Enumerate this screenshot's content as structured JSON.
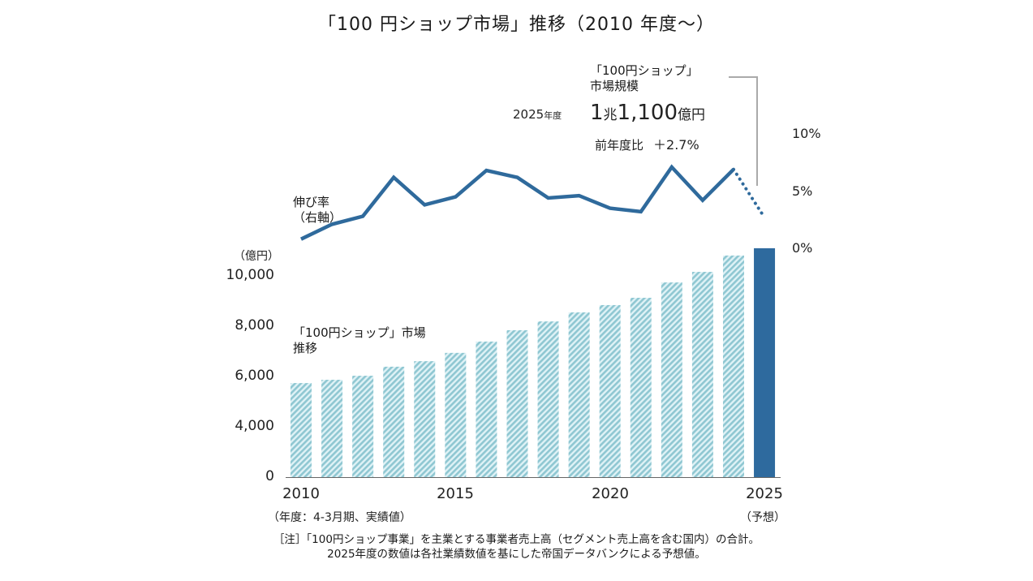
{
  "title": "「100 円ショップ市場」推移（2010 年度～）",
  "callout": {
    "heading_line1": "「100円ショップ」",
    "heading_line2": "市場規模",
    "year": "2025",
    "year_suffix": "年度",
    "value_main": "1",
    "value_unit1": "兆",
    "value_rest": "1,100",
    "value_unit2": "億円",
    "yoy_label": "前年度比",
    "yoy_value": "＋2.7%"
  },
  "labels": {
    "growth_line1": "伸び率",
    "growth_line2": "（右軸）",
    "market_line1": "「100円ショップ」市場",
    "market_line2": "推移",
    "left_unit": "（億円）",
    "fiscal_note": "（年度：4-3月期、実績値）",
    "forecast_note": "（予想）"
  },
  "note": {
    "line1": "［注］「100円ショップ事業」を主業とする事業者売上高（セグメント売上高を含む国内）の合計。",
    "line2": "2025年度の数値は各社業績数値を基にした帝国データバンクによる予想値。"
  },
  "colors": {
    "line": "#2f6a9c",
    "bar_hatch_dark": "#8fc7d2",
    "bar_hatch_light": "#dff2f6",
    "bar_forecast": "#2e6a9e",
    "axis": "#666666",
    "leader": "#aaaaaa"
  },
  "chart_data": {
    "type": "bar+line",
    "title": "「100 円ショップ市場」推移（2010 年度～）",
    "categories": [
      "2010",
      "2011",
      "2012",
      "2013",
      "2014",
      "2015",
      "2016",
      "2017",
      "2018",
      "2019",
      "2020",
      "2021",
      "2022",
      "2023",
      "2024",
      "2025"
    ],
    "x_tick_labels": [
      "2010",
      "2015",
      "2020",
      "2025"
    ],
    "series": [
      {
        "name": "「100円ショップ」市場推移",
        "type": "bar",
        "axis": "left",
        "unit": "億円",
        "values": [
          5740,
          5870,
          6030,
          6390,
          6610,
          6940,
          7390,
          7840,
          8190,
          8550,
          8840,
          9130,
          9740,
          10160,
          10810,
          11100
        ],
        "forecast_from": "2025"
      },
      {
        "name": "伸び率（右軸）",
        "type": "line",
        "axis": "right",
        "unit": "%",
        "values": [
          0.8,
          2.1,
          2.8,
          6.2,
          3.8,
          4.5,
          6.8,
          6.2,
          4.4,
          4.6,
          3.5,
          3.2,
          7.1,
          4.2,
          6.9,
          2.7
        ],
        "forecast_from": "2025"
      }
    ],
    "y_left": {
      "label": "（億円）",
      "ticks": [
        0,
        4000,
        6000,
        8000,
        10000
      ],
      "tick_labels": [
        "0",
        "4,000",
        "6,000",
        "8,000",
        "10,000"
      ],
      "broken_axis_between": [
        0,
        4000
      ]
    },
    "y_right": {
      "ticks": [
        0,
        5,
        10
      ],
      "tick_labels": [
        "0%",
        "5%",
        "10%"
      ]
    },
    "grid": false,
    "annotation": "2025年度 1兆1,100億円 前年度比 ＋2.7%"
  }
}
